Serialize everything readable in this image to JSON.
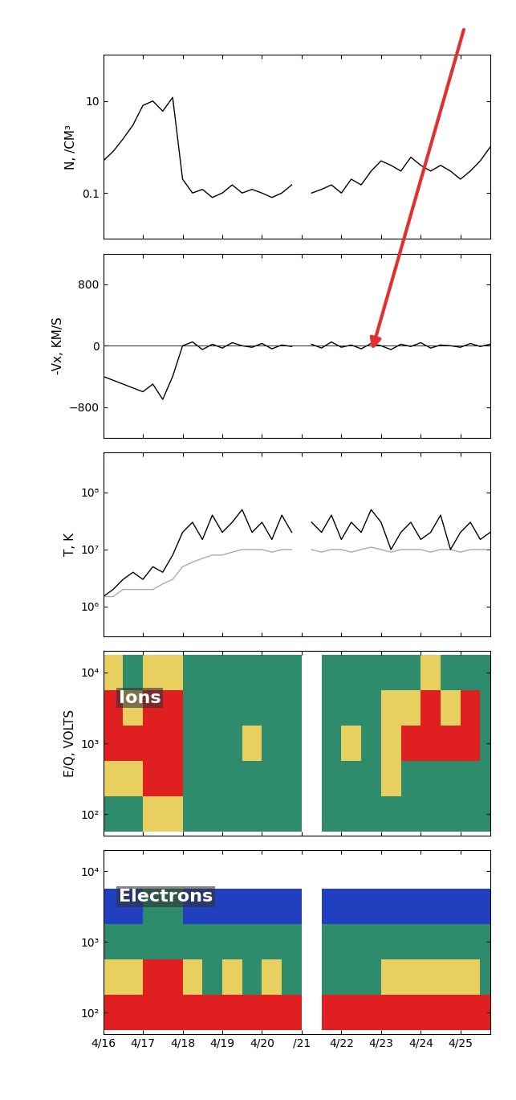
{
  "chart_data": [
    {
      "type": "line",
      "y_label": "N, /CM³",
      "log": "y",
      "tick_labels": "y",
      "xlim": [
        16,
        25.75
      ],
      "xticks": [
        16,
        17,
        18,
        19,
        20,
        21,
        22,
        23,
        24,
        25
      ],
      "ylim": [
        0.01,
        100
      ],
      "yticks": [
        0.1,
        10
      ],
      "x": [
        16.0,
        16.25,
        16.5,
        16.75,
        17.0,
        17.25,
        17.5,
        17.75,
        18.0,
        18.25,
        18.5,
        18.75,
        19.0,
        19.25,
        19.5,
        19.75,
        20.0,
        20.25,
        20.5,
        20.75,
        21.0,
        21.25,
        21.5,
        21.75,
        22.0,
        22.25,
        22.5,
        22.75,
        23.0,
        23.25,
        23.5,
        23.75,
        24.0,
        24.25,
        24.5,
        24.75,
        25.0,
        25.25,
        25.5,
        25.75
      ],
      "series": [
        {
          "color": "#000000",
          "values": [
            0.5,
            0.8,
            1.5,
            3,
            8,
            10,
            6,
            12,
            0.2,
            0.1,
            0.12,
            0.08,
            0.1,
            0.15,
            0.1,
            0.12,
            0.1,
            0.08,
            0.1,
            0.15,
            null,
            0.1,
            0.12,
            0.15,
            0.1,
            0.2,
            0.15,
            0.3,
            0.5,
            0.4,
            0.3,
            0.6,
            0.4,
            0.3,
            0.4,
            0.3,
            0.2,
            0.3,
            0.5,
            1
          ]
        }
      ]
    },
    {
      "type": "line",
      "y_label": "-Vx, KM/S",
      "tick_labels": "y",
      "xlim": [
        16,
        25.75
      ],
      "xticks": [
        16,
        17,
        18,
        19,
        20,
        21,
        22,
        23,
        24,
        25
      ],
      "ylim": [
        -1200,
        1200
      ],
      "yticks": [
        {
          "value": -800,
          "label": "−800"
        },
        0,
        800
      ],
      "x": [
        16.0,
        16.25,
        16.5,
        16.75,
        17.0,
        17.25,
        17.5,
        17.75,
        18.0,
        18.25,
        18.5,
        18.75,
        19.0,
        19.25,
        19.5,
        19.75,
        20.0,
        20.25,
        20.5,
        20.75,
        21.0,
        21.25,
        21.5,
        21.75,
        22.0,
        22.25,
        22.5,
        22.75,
        23.0,
        23.25,
        23.5,
        23.75,
        24.0,
        24.25,
        24.5,
        24.75,
        25.0,
        25.25,
        25.5,
        25.75
      ],
      "series": [
        {
          "color": "#000000",
          "values": [
            -400,
            -450,
            -500,
            -550,
            -600,
            -500,
            -700,
            -400,
            0,
            50,
            -50,
            20,
            -30,
            40,
            0,
            -20,
            30,
            -40,
            10,
            -10,
            null,
            20,
            -30,
            50,
            -20,
            10,
            -40,
            30,
            0,
            -50,
            20,
            -10,
            40,
            -30,
            10,
            0,
            -20,
            30,
            -10,
            20
          ]
        }
      ]
    },
    {
      "type": "line",
      "y_label": "T, K",
      "log": "y",
      "tick_labels": "y",
      "xlim": [
        16,
        25.75
      ],
      "xticks": [
        16,
        17,
        18,
        19,
        20,
        21,
        22,
        23,
        24,
        25
      ],
      "ylim": [
        300000,
        500000000
      ],
      "yticks": [
        {
          "value": 1000000,
          "label": "10⁶"
        },
        {
          "value": 10000000,
          "label": "10⁷"
        },
        {
          "value": 100000000,
          "label": "10⁸"
        }
      ],
      "x": [
        16.0,
        16.25,
        16.5,
        16.75,
        17.0,
        17.25,
        17.5,
        17.75,
        18.0,
        18.25,
        18.5,
        18.75,
        19.0,
        19.25,
        19.5,
        19.75,
        20.0,
        20.25,
        20.5,
        20.75,
        21.0,
        21.25,
        21.5,
        21.75,
        22.0,
        22.25,
        22.5,
        22.75,
        23.0,
        23.25,
        23.5,
        23.75,
        24.0,
        24.25,
        24.5,
        24.75,
        25.0,
        25.25,
        25.5,
        25.75
      ],
      "series": [
        {
          "color": "#aaaaaa",
          "values": [
            1500000,
            1500000,
            2000000,
            2000000,
            2000000,
            2000000,
            2500000,
            3000000,
            5000000,
            6000000,
            7000000,
            8000000,
            8000000,
            9000000,
            10000000,
            10000000,
            10000000,
            9000000,
            10000000,
            10000000,
            null,
            10000000,
            9000000,
            10000000,
            10000000,
            9000000,
            10000000,
            11000000,
            10000000,
            9000000,
            10000000,
            10000000,
            10000000,
            9000000,
            10000000,
            10000000,
            9000000,
            10000000,
            10000000,
            10000000
          ]
        },
        {
          "color": "#000000",
          "values": [
            1500000,
            2000000,
            3000000,
            4000000,
            3000000,
            5000000,
            4000000,
            8000000,
            20000000,
            30000000,
            15000000,
            40000000,
            20000000,
            30000000,
            50000000,
            20000000,
            30000000,
            15000000,
            40000000,
            20000000,
            null,
            30000000,
            20000000,
            40000000,
            15000000,
            30000000,
            20000000,
            50000000,
            30000000,
            10000000,
            20000000,
            30000000,
            15000000,
            20000000,
            40000000,
            10000000,
            20000000,
            30000000,
            15000000,
            20000000
          ]
        }
      ]
    },
    {
      "type": "spectrogram",
      "y_label": "E/Q, VOLTS",
      "annotation": "Ions",
      "log": "y",
      "tick_labels": "y",
      "xlim": [
        16,
        25.75
      ],
      "xticks": [
        16,
        17,
        18,
        19,
        20,
        21,
        22,
        23,
        24,
        25
      ],
      "ylim": [
        50,
        20000
      ],
      "yticks": [
        {
          "value": 100,
          "label": "10²"
        },
        {
          "value": 1000,
          "label": "10³"
        },
        {
          "value": 10000,
          "label": "10⁴"
        }
      ],
      "colors": [
        "#ffffff",
        "#2040c0",
        "#2e8b6b",
        "#e8d060",
        "#e02020"
      ],
      "clim": [
        0,
        4
      ],
      "time_edges": [
        16,
        16.5,
        17,
        17.5,
        18,
        18.5,
        19,
        19.5,
        20,
        20.5,
        21,
        21.5,
        22,
        22.5,
        23,
        23.5,
        24,
        24.5,
        25,
        25.5,
        26
      ],
      "energy_edges": [
        56.2,
        177.8,
        562.3,
        1778,
        5623,
        17783
      ],
      "cells": [
        [
          2,
          2,
          3,
          3,
          2,
          2,
          2,
          2,
          2,
          2,
          null,
          2,
          2,
          2,
          2,
          2,
          2,
          2,
          2,
          2
        ],
        [
          3,
          3,
          4,
          4,
          2,
          2,
          2,
          2,
          2,
          2,
          null,
          2,
          2,
          2,
          3,
          2,
          2,
          2,
          2,
          2
        ],
        [
          4,
          4,
          4,
          4,
          2,
          2,
          2,
          3,
          2,
          2,
          null,
          2,
          3,
          2,
          3,
          4,
          4,
          4,
          4,
          2
        ],
        [
          4,
          3,
          4,
          4,
          2,
          2,
          2,
          2,
          2,
          2,
          null,
          2,
          2,
          2,
          3,
          3,
          4,
          3,
          4,
          2
        ],
        [
          3,
          2,
          3,
          3,
          2,
          2,
          2,
          2,
          2,
          2,
          null,
          2,
          2,
          2,
          2,
          2,
          3,
          2,
          2,
          2
        ]
      ]
    },
    {
      "type": "spectrogram",
      "annotation": "Electrons",
      "log": "y",
      "xlim": [
        16,
        25.75
      ],
      "xticks": [
        {
          "value": 16,
          "label": "4/16"
        },
        {
          "value": 17,
          "label": "4/17"
        },
        {
          "value": 18,
          "label": "4/18"
        },
        {
          "value": 19,
          "label": "4/19"
        },
        {
          "value": 20,
          "label": "4/20"
        },
        {
          "value": 21,
          "label": "/21"
        },
        {
          "value": 22,
          "label": "4/22"
        },
        {
          "value": 23,
          "label": "4/23"
        },
        {
          "value": 24,
          "label": "4/24"
        },
        {
          "value": 25,
          "label": "4/25"
        }
      ],
      "ylim": [
        50,
        20000
      ],
      "yticks": [
        {
          "value": 100,
          "label": "10²"
        },
        {
          "value": 1000,
          "label": "10³"
        },
        {
          "value": 10000,
          "label": "10⁴"
        }
      ],
      "colors": [
        "#ffffff",
        "#2040c0",
        "#2e8b6b",
        "#e8d060",
        "#e02020"
      ],
      "clim": [
        0,
        4
      ],
      "time_edges": [
        16,
        16.5,
        17,
        17.5,
        18,
        18.5,
        19,
        19.5,
        20,
        20.5,
        21,
        21.5,
        22,
        22.5,
        23,
        23.5,
        24,
        24.5,
        25,
        25.5,
        26
      ],
      "energy_edges": [
        56.2,
        177.8,
        562.3,
        1778,
        5623,
        17783
      ],
      "cells": [
        [
          4,
          4,
          4,
          4,
          4,
          4,
          4,
          4,
          4,
          4,
          null,
          4,
          4,
          4,
          4,
          4,
          4,
          4,
          4,
          4
        ],
        [
          3,
          3,
          4,
          4,
          3,
          2,
          3,
          2,
          3,
          2,
          null,
          2,
          2,
          2,
          3,
          3,
          3,
          3,
          3,
          2
        ],
        [
          2,
          2,
          2,
          2,
          2,
          2,
          2,
          2,
          2,
          2,
          null,
          2,
          2,
          2,
          2,
          2,
          2,
          2,
          2,
          2
        ],
        [
          1,
          1,
          2,
          2,
          1,
          1,
          1,
          1,
          1,
          1,
          null,
          1,
          1,
          1,
          1,
          1,
          1,
          1,
          1,
          1
        ],
        [
          0,
          0,
          0,
          0,
          0,
          0,
          0,
          0,
          0,
          0,
          null,
          0,
          0,
          0,
          0,
          0,
          0,
          0,
          0,
          0
        ]
      ]
    }
  ]
}
